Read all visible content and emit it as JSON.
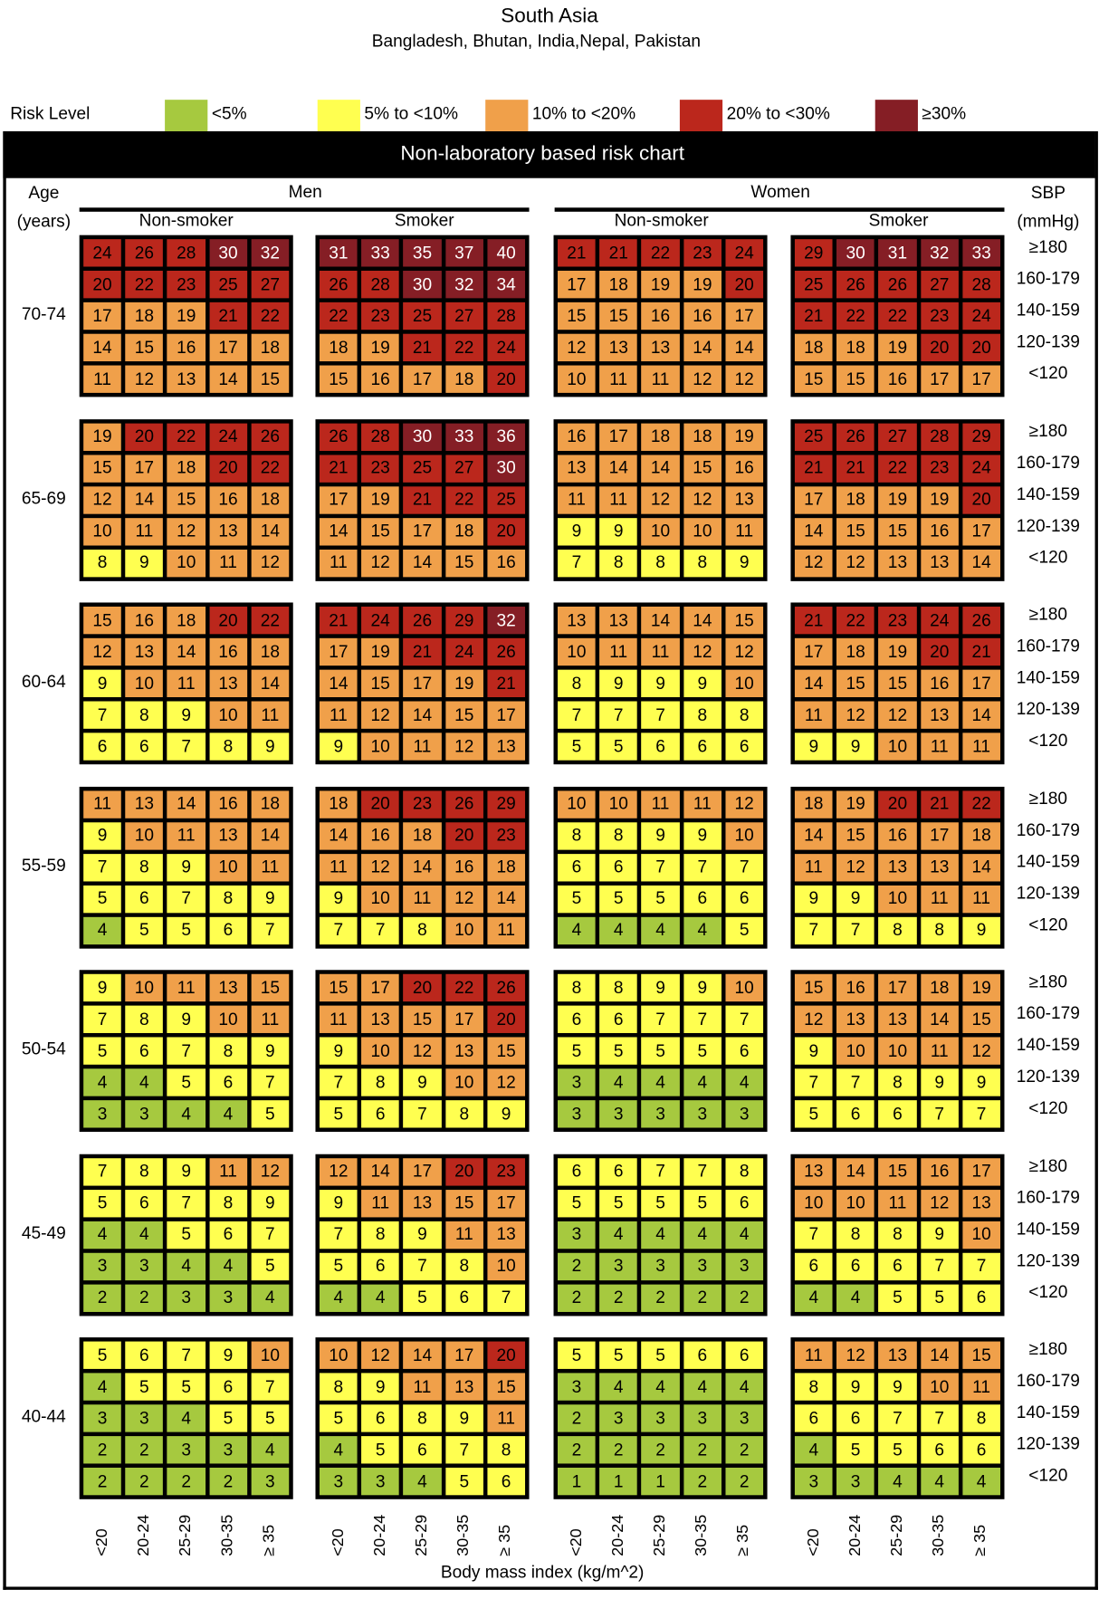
{
  "title": "South Asia",
  "subtitle": "Bangladesh, Bhutan, India,Nepal, Pakistan",
  "legend": {
    "label": "Risk Level",
    "items": [
      {
        "label": "<5%",
        "color": "#a6c93f"
      },
      {
        "label": "5% to <10%",
        "color": "#ffff50"
      },
      {
        "label": "10% to <20%",
        "color": "#f0a04a"
      },
      {
        "label": "20% to <30%",
        "color": "#bb271c"
      },
      {
        "label": "≥30%",
        "color": "#851e25"
      }
    ]
  },
  "band_title": "Non-laboratory based risk chart",
  "headers": {
    "age": "Age",
    "age_unit": "(years)",
    "men": "Men",
    "women": "Women",
    "non_smoker": "Non-smoker",
    "smoker": "Smoker",
    "sbp": "SBP",
    "sbp_unit": "(mmHg)"
  },
  "chart_data": {
    "type": "heatmap",
    "title": "Non-laboratory based risk chart",
    "xlabel": "Body mass index (kg/m^2)",
    "ylabel": "SBP (mmHg)",
    "bmi_categories": [
      "<20",
      "20-24",
      "25-29",
      "30-35",
      "≥ 35"
    ],
    "sbp_categories": [
      "≥180",
      "160-179",
      "140-159",
      "120-139",
      "<120"
    ],
    "panels": [
      "men_nonsmoker",
      "men_smoker",
      "women_nonsmoker",
      "women_smoker"
    ],
    "age_groups": [
      {
        "label": "70-74",
        "men_nonsmoker": [
          [
            24,
            26,
            28,
            30,
            32
          ],
          [
            20,
            22,
            23,
            25,
            27
          ],
          [
            17,
            18,
            19,
            21,
            22
          ],
          [
            14,
            15,
            16,
            17,
            18
          ],
          [
            11,
            12,
            13,
            14,
            15
          ]
        ],
        "men_smoker": [
          [
            31,
            33,
            35,
            37,
            40
          ],
          [
            26,
            28,
            30,
            32,
            34
          ],
          [
            22,
            23,
            25,
            27,
            28
          ],
          [
            18,
            19,
            21,
            22,
            24
          ],
          [
            15,
            16,
            17,
            18,
            20
          ]
        ],
        "women_nonsmoker": [
          [
            21,
            21,
            22,
            23,
            24
          ],
          [
            17,
            18,
            19,
            19,
            20
          ],
          [
            15,
            15,
            16,
            16,
            17
          ],
          [
            12,
            13,
            13,
            14,
            14
          ],
          [
            10,
            11,
            11,
            12,
            12
          ]
        ],
        "women_smoker": [
          [
            29,
            30,
            31,
            32,
            33
          ],
          [
            25,
            26,
            26,
            27,
            28
          ],
          [
            21,
            22,
            22,
            23,
            24
          ],
          [
            18,
            18,
            19,
            20,
            20
          ],
          [
            15,
            15,
            16,
            17,
            17
          ]
        ]
      },
      {
        "label": "65-69",
        "men_nonsmoker": [
          [
            19,
            20,
            22,
            24,
            26
          ],
          [
            15,
            17,
            18,
            20,
            22
          ],
          [
            12,
            14,
            15,
            16,
            18
          ],
          [
            10,
            11,
            12,
            13,
            14
          ],
          [
            8,
            9,
            10,
            11,
            12
          ]
        ],
        "men_smoker": [
          [
            26,
            28,
            30,
            33,
            36
          ],
          [
            21,
            23,
            25,
            27,
            30
          ],
          [
            17,
            19,
            21,
            22,
            25
          ],
          [
            14,
            15,
            17,
            18,
            20
          ],
          [
            11,
            12,
            14,
            15,
            16
          ]
        ],
        "women_nonsmoker": [
          [
            16,
            17,
            18,
            18,
            19
          ],
          [
            13,
            14,
            14,
            15,
            16
          ],
          [
            11,
            11,
            12,
            12,
            13
          ],
          [
            9,
            9,
            10,
            10,
            11
          ],
          [
            7,
            8,
            8,
            8,
            9
          ]
        ],
        "women_smoker": [
          [
            25,
            26,
            27,
            28,
            29
          ],
          [
            21,
            21,
            22,
            23,
            24
          ],
          [
            17,
            18,
            19,
            19,
            20
          ],
          [
            14,
            15,
            15,
            16,
            17
          ],
          [
            12,
            12,
            13,
            13,
            14
          ]
        ]
      },
      {
        "label": "60-64",
        "men_nonsmoker": [
          [
            15,
            16,
            18,
            20,
            22
          ],
          [
            12,
            13,
            14,
            16,
            18
          ],
          [
            9,
            10,
            11,
            13,
            14
          ],
          [
            7,
            8,
            9,
            10,
            11
          ],
          [
            6,
            6,
            7,
            8,
            9
          ]
        ],
        "men_smoker": [
          [
            21,
            24,
            26,
            29,
            32
          ],
          [
            17,
            19,
            21,
            24,
            26
          ],
          [
            14,
            15,
            17,
            19,
            21
          ],
          [
            11,
            12,
            14,
            15,
            17
          ],
          [
            9,
            10,
            11,
            12,
            13
          ]
        ],
        "women_nonsmoker": [
          [
            13,
            13,
            14,
            14,
            15
          ],
          [
            10,
            11,
            11,
            12,
            12
          ],
          [
            8,
            9,
            9,
            9,
            10
          ],
          [
            7,
            7,
            7,
            8,
            8
          ],
          [
            5,
            5,
            6,
            6,
            6
          ]
        ],
        "women_smoker": [
          [
            21,
            22,
            23,
            24,
            26
          ],
          [
            17,
            18,
            19,
            20,
            21
          ],
          [
            14,
            15,
            15,
            16,
            17
          ],
          [
            11,
            12,
            12,
            13,
            14
          ],
          [
            9,
            9,
            10,
            11,
            11
          ]
        ]
      },
      {
        "label": "55-59",
        "men_nonsmoker": [
          [
            11,
            13,
            14,
            16,
            18
          ],
          [
            9,
            10,
            11,
            13,
            14
          ],
          [
            7,
            8,
            9,
            10,
            11
          ],
          [
            5,
            6,
            7,
            8,
            9
          ],
          [
            4,
            5,
            5,
            6,
            7
          ]
        ],
        "men_smoker": [
          [
            18,
            20,
            23,
            26,
            29
          ],
          [
            14,
            16,
            18,
            20,
            23
          ],
          [
            11,
            12,
            14,
            16,
            18
          ],
          [
            9,
            10,
            11,
            12,
            14
          ],
          [
            7,
            7,
            8,
            10,
            11
          ]
        ],
        "women_nonsmoker": [
          [
            10,
            10,
            11,
            11,
            12
          ],
          [
            8,
            8,
            9,
            9,
            10
          ],
          [
            6,
            6,
            7,
            7,
            7
          ],
          [
            5,
            5,
            5,
            6,
            6
          ],
          [
            4,
            4,
            4,
            4,
            5
          ]
        ],
        "women_smoker": [
          [
            18,
            19,
            20,
            21,
            22
          ],
          [
            14,
            15,
            16,
            17,
            18
          ],
          [
            11,
            12,
            13,
            13,
            14
          ],
          [
            9,
            9,
            10,
            11,
            11
          ],
          [
            7,
            7,
            8,
            8,
            9
          ]
        ]
      },
      {
        "label": "50-54",
        "men_nonsmoker": [
          [
            9,
            10,
            11,
            13,
            15
          ],
          [
            7,
            8,
            9,
            10,
            11
          ],
          [
            5,
            6,
            7,
            8,
            9
          ],
          [
            4,
            4,
            5,
            6,
            7
          ],
          [
            3,
            3,
            4,
            4,
            5
          ]
        ],
        "men_smoker": [
          [
            15,
            17,
            20,
            22,
            26
          ],
          [
            11,
            13,
            15,
            17,
            20
          ],
          [
            9,
            10,
            12,
            13,
            15
          ],
          [
            7,
            8,
            9,
            10,
            12
          ],
          [
            5,
            6,
            7,
            8,
            9
          ]
        ],
        "women_nonsmoker": [
          [
            8,
            8,
            9,
            9,
            10
          ],
          [
            6,
            6,
            7,
            7,
            7
          ],
          [
            5,
            5,
            5,
            5,
            6
          ],
          [
            3,
            4,
            4,
            4,
            4
          ],
          [
            3,
            3,
            3,
            3,
            3
          ]
        ],
        "women_smoker": [
          [
            15,
            16,
            17,
            18,
            19
          ],
          [
            12,
            13,
            13,
            14,
            15
          ],
          [
            9,
            10,
            10,
            11,
            12
          ],
          [
            7,
            7,
            8,
            9,
            9
          ],
          [
            5,
            6,
            6,
            7,
            7
          ]
        ]
      },
      {
        "label": "45-49",
        "men_nonsmoker": [
          [
            7,
            8,
            9,
            11,
            12
          ],
          [
            5,
            6,
            7,
            8,
            9
          ],
          [
            4,
            4,
            5,
            6,
            7
          ],
          [
            3,
            3,
            4,
            4,
            5
          ],
          [
            2,
            2,
            3,
            3,
            4
          ]
        ],
        "men_smoker": [
          [
            12,
            14,
            17,
            20,
            23
          ],
          [
            9,
            11,
            13,
            15,
            17
          ],
          [
            7,
            8,
            9,
            11,
            13
          ],
          [
            5,
            6,
            7,
            8,
            10
          ],
          [
            4,
            4,
            5,
            6,
            7
          ]
        ],
        "women_nonsmoker": [
          [
            6,
            6,
            7,
            7,
            8
          ],
          [
            5,
            5,
            5,
            5,
            6
          ],
          [
            3,
            4,
            4,
            4,
            4
          ],
          [
            2,
            3,
            3,
            3,
            3
          ],
          [
            2,
            2,
            2,
            2,
            2
          ]
        ],
        "women_smoker": [
          [
            13,
            14,
            15,
            16,
            17
          ],
          [
            10,
            10,
            11,
            12,
            13
          ],
          [
            7,
            8,
            8,
            9,
            10
          ],
          [
            6,
            6,
            6,
            7,
            7
          ],
          [
            4,
            4,
            5,
            5,
            6
          ]
        ]
      },
      {
        "label": "40-44",
        "men_nonsmoker": [
          [
            5,
            6,
            7,
            9,
            10
          ],
          [
            4,
            5,
            5,
            6,
            7
          ],
          [
            3,
            3,
            4,
            5,
            5
          ],
          [
            2,
            2,
            3,
            3,
            4
          ],
          [
            2,
            2,
            2,
            2,
            3
          ]
        ],
        "men_smoker": [
          [
            10,
            12,
            14,
            17,
            20
          ],
          [
            8,
            9,
            11,
            13,
            15
          ],
          [
            5,
            6,
            8,
            9,
            11
          ],
          [
            4,
            5,
            6,
            7,
            8
          ],
          [
            3,
            3,
            4,
            5,
            6
          ]
        ],
        "women_nonsmoker": [
          [
            5,
            5,
            5,
            6,
            6
          ],
          [
            3,
            4,
            4,
            4,
            4
          ],
          [
            2,
            3,
            3,
            3,
            3
          ],
          [
            2,
            2,
            2,
            2,
            2
          ],
          [
            1,
            1,
            1,
            2,
            2
          ]
        ],
        "women_smoker": [
          [
            11,
            12,
            13,
            14,
            15
          ],
          [
            8,
            9,
            9,
            10,
            11
          ],
          [
            6,
            6,
            7,
            7,
            8
          ],
          [
            4,
            5,
            5,
            6,
            6
          ],
          [
            3,
            3,
            4,
            4,
            4
          ]
        ]
      }
    ]
  }
}
